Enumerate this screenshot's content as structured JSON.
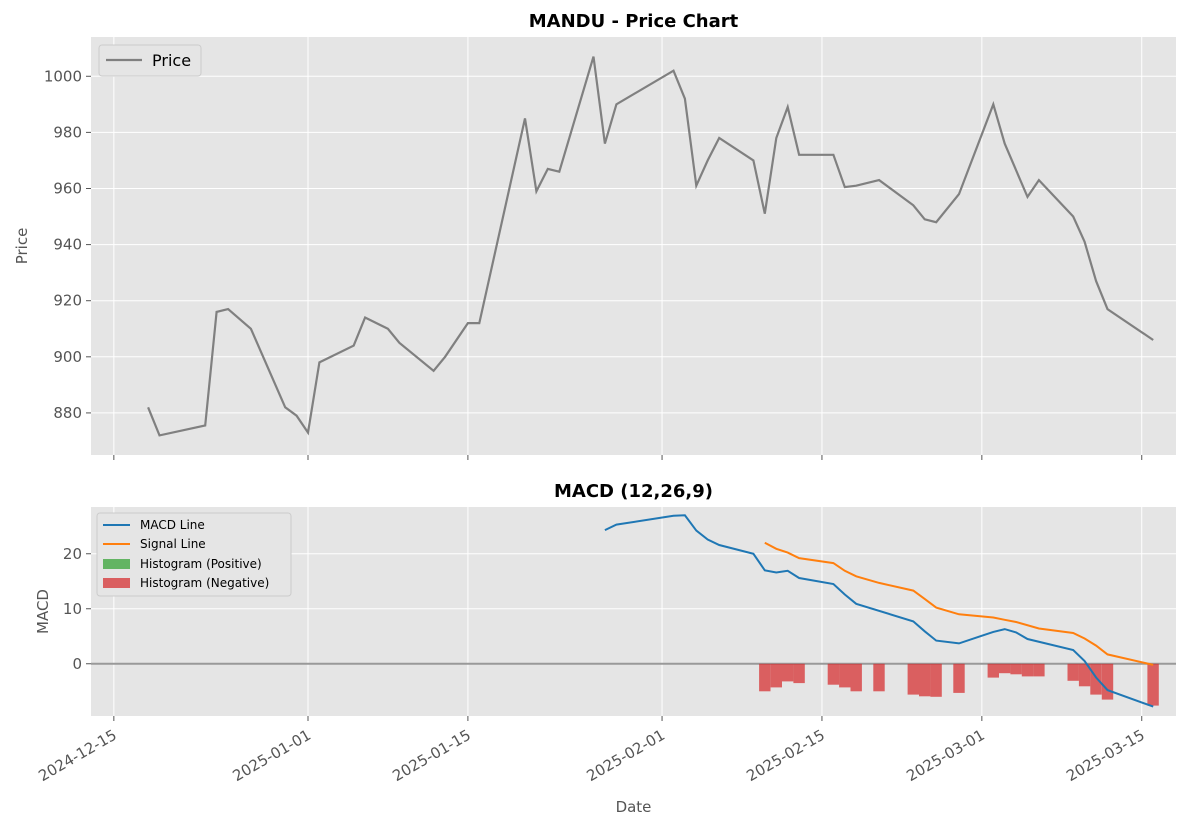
{
  "chart_data": [
    {
      "type": "line",
      "title": "MANDU - Price Chart",
      "xlabel": "",
      "ylabel": "Price",
      "ylim": [
        865,
        1014
      ],
      "yticks": [
        880,
        900,
        920,
        940,
        960,
        980,
        1000
      ],
      "xlim": [
        "2024-12-13",
        "2025-03-18"
      ],
      "grid": true,
      "legend": "upper-left",
      "series": [
        {
          "name": "Price",
          "color": "#808080",
          "points": [
            [
              "2024-12-18",
              882
            ],
            [
              "2024-12-19",
              872
            ],
            [
              "2024-12-23",
              875.5
            ],
            [
              "2024-12-24",
              916
            ],
            [
              "2024-12-25",
              917
            ],
            [
              "2024-12-27",
              910
            ],
            [
              "2024-12-30",
              882
            ],
            [
              "2024-12-31",
              879
            ],
            [
              "2025-01-01",
              873
            ],
            [
              "2025-01-02",
              898
            ],
            [
              "2025-01-05",
              904
            ],
            [
              "2025-01-06",
              914
            ],
            [
              "2025-01-08",
              910
            ],
            [
              "2025-01-09",
              905
            ],
            [
              "2025-01-12",
              895
            ],
            [
              "2025-01-13",
              900
            ],
            [
              "2025-01-15",
              912
            ],
            [
              "2025-01-16",
              912
            ],
            [
              "2025-01-20",
              985
            ],
            [
              "2025-01-21",
              959
            ],
            [
              "2025-01-22",
              967
            ],
            [
              "2025-01-23",
              966
            ],
            [
              "2025-01-26",
              1007
            ],
            [
              "2025-01-27",
              976
            ],
            [
              "2025-01-28",
              990
            ],
            [
              "2025-02-02",
              1002
            ],
            [
              "2025-02-03",
              992
            ],
            [
              "2025-02-04",
              961
            ],
            [
              "2025-02-05",
              970
            ],
            [
              "2025-02-06",
              978
            ],
            [
              "2025-02-09",
              970
            ],
            [
              "2025-02-10",
              951
            ],
            [
              "2025-02-11",
              978
            ],
            [
              "2025-02-12",
              989
            ],
            [
              "2025-02-13",
              972
            ],
            [
              "2025-02-16",
              972
            ],
            [
              "2025-02-17",
              960.5
            ],
            [
              "2025-02-18",
              961
            ],
            [
              "2025-02-20",
              963
            ],
            [
              "2025-02-23",
              954
            ],
            [
              "2025-02-24",
              949
            ],
            [
              "2025-02-25",
              948
            ],
            [
              "2025-02-27",
              958
            ],
            [
              "2025-03-02",
              990
            ],
            [
              "2025-03-03",
              976
            ],
            [
              "2025-03-05",
              957
            ],
            [
              "2025-03-06",
              963
            ],
            [
              "2025-03-09",
              950
            ],
            [
              "2025-03-10",
              941
            ],
            [
              "2025-03-11",
              927
            ],
            [
              "2025-03-12",
              917
            ],
            [
              "2025-03-16",
              906
            ]
          ]
        }
      ]
    },
    {
      "type": "line",
      "title": "MACD (12,26,9)",
      "xlabel": "Date",
      "ylabel": "MACD",
      "ylim": [
        -9.5,
        28.5
      ],
      "yticks": [
        0,
        10,
        20
      ],
      "xlim": [
        "2024-12-13",
        "2025-03-18"
      ],
      "xticks": [
        "2024-12-15",
        "2025-01-01",
        "2025-01-15",
        "2025-02-01",
        "2025-02-15",
        "2025-03-01",
        "2025-03-15"
      ],
      "grid": true,
      "legend": "upper-left",
      "series": [
        {
          "name": "MACD Line",
          "color": "#1f77b4",
          "points": [
            [
              "2025-01-27",
              24.3
            ],
            [
              "2025-01-28",
              25.3
            ],
            [
              "2025-02-02",
              26.9
            ],
            [
              "2025-02-03",
              27
            ],
            [
              "2025-02-04",
              24.2
            ],
            [
              "2025-02-05",
              22.6
            ],
            [
              "2025-02-06",
              21.6
            ],
            [
              "2025-02-09",
              20
            ],
            [
              "2025-02-10",
              17
            ],
            [
              "2025-02-11",
              16.6
            ],
            [
              "2025-02-12",
              16.9
            ],
            [
              "2025-02-13",
              15.6
            ],
            [
              "2025-02-16",
              14.5
            ],
            [
              "2025-02-17",
              12.6
            ],
            [
              "2025-02-18",
              10.9
            ],
            [
              "2025-02-23",
              7.7
            ],
            [
              "2025-02-24",
              5.9
            ],
            [
              "2025-02-25",
              4.2
            ],
            [
              "2025-02-27",
              3.7
            ],
            [
              "2025-03-02",
              5.8
            ],
            [
              "2025-03-03",
              6.3
            ],
            [
              "2025-03-04",
              5.7
            ],
            [
              "2025-03-05",
              4.5
            ],
            [
              "2025-03-09",
              2.5
            ],
            [
              "2025-03-10",
              0.5
            ],
            [
              "2025-03-11",
              -2.5
            ],
            [
              "2025-03-12",
              -4.8
            ],
            [
              "2025-03-16",
              -7.8
            ]
          ]
        },
        {
          "name": "Signal Line",
          "color": "#ff7f0e",
          "points": [
            [
              "2025-02-10",
              22
            ],
            [
              "2025-02-11",
              20.9
            ],
            [
              "2025-02-12",
              20.2
            ],
            [
              "2025-02-13",
              19.2
            ],
            [
              "2025-02-16",
              18.3
            ],
            [
              "2025-02-17",
              16.9
            ],
            [
              "2025-02-18",
              15.9
            ],
            [
              "2025-02-20",
              14.7
            ],
            [
              "2025-02-23",
              13.3
            ],
            [
              "2025-02-24",
              11.8
            ],
            [
              "2025-02-25",
              10.2
            ],
            [
              "2025-02-27",
              9
            ],
            [
              "2025-03-02",
              8.4
            ],
            [
              "2025-03-03",
              8
            ],
            [
              "2025-03-04",
              7.6
            ],
            [
              "2025-03-06",
              6.4
            ],
            [
              "2025-03-09",
              5.6
            ],
            [
              "2025-03-10",
              4.6
            ],
            [
              "2025-03-11",
              3.3
            ],
            [
              "2025-03-12",
              1.7
            ],
            [
              "2025-03-16",
              -0.2
            ]
          ]
        }
      ],
      "histogram": {
        "legend_positive": "Histogram (Positive)",
        "legend_negative": "Histogram (Negative)",
        "color_positive": "#2ca02c",
        "color_negative": "#d62728",
        "bars": [
          [
            "2025-02-10",
            -5
          ],
          [
            "2025-02-11",
            -4.3
          ],
          [
            "2025-02-12",
            -3.2
          ],
          [
            "2025-02-13",
            -3.5
          ],
          [
            "2025-02-16",
            -3.8
          ],
          [
            "2025-02-17",
            -4.3
          ],
          [
            "2025-02-18",
            -5
          ],
          [
            "2025-02-20",
            -5
          ],
          [
            "2025-02-23",
            -5.6
          ],
          [
            "2025-02-24",
            -5.9
          ],
          [
            "2025-02-25",
            -6
          ],
          [
            "2025-02-27",
            -5.3
          ],
          [
            "2025-03-02",
            -2.5
          ],
          [
            "2025-03-03",
            -1.7
          ],
          [
            "2025-03-04",
            -1.9
          ],
          [
            "2025-03-05",
            -2.3
          ],
          [
            "2025-03-06",
            -2.3
          ],
          [
            "2025-03-09",
            -3.1
          ],
          [
            "2025-03-10",
            -4.1
          ],
          [
            "2025-03-11",
            -5.6
          ],
          [
            "2025-03-12",
            -6.5
          ],
          [
            "2025-03-16",
            -7.6
          ]
        ]
      }
    }
  ]
}
